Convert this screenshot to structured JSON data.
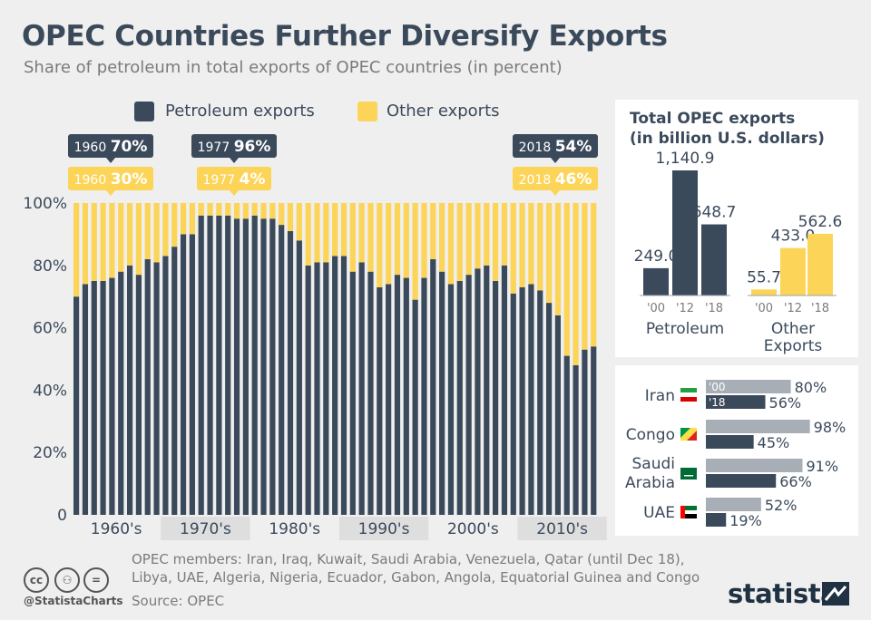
{
  "header": {
    "title": "OPEC Countries Further Diversify Exports",
    "subtitle": "Share of petroleum in total exports of OPEC countries (in percent)"
  },
  "legend": {
    "petroleum": "Petroleum exports",
    "other": "Other exports"
  },
  "colors": {
    "petroleum": "#3b4a5b",
    "other": "#fcd458",
    "grey_bar": "#a7aeb5",
    "band": "#dedede",
    "panel": "#ffffff"
  },
  "callouts": [
    {
      "year": "1960",
      "value": "70%",
      "series": "petroleum"
    },
    {
      "year": "1960",
      "value": "30%",
      "series": "other"
    },
    {
      "year": "1977",
      "value": "96%",
      "series": "petroleum"
    },
    {
      "year": "1977",
      "value": "4%",
      "series": "other"
    },
    {
      "year": "2018",
      "value": "54%",
      "series": "petroleum"
    },
    {
      "year": "2018",
      "value": "46%",
      "series": "other"
    }
  ],
  "chart_data": [
    {
      "type": "bar",
      "stacked": true,
      "ylim": [
        0,
        100
      ],
      "yticks": [
        "0",
        "20%",
        "40%",
        "60%",
        "80%",
        "100%"
      ],
      "decades": [
        "1960's",
        "1970's",
        "1980's",
        "1990's",
        "2000's",
        "2010's"
      ],
      "x": [
        1960,
        1961,
        1962,
        1963,
        1964,
        1965,
        1966,
        1967,
        1968,
        1969,
        1970,
        1971,
        1972,
        1973,
        1974,
        1975,
        1976,
        1977,
        1978,
        1979,
        1980,
        1981,
        1982,
        1983,
        1984,
        1985,
        1986,
        1987,
        1988,
        1989,
        1990,
        1991,
        1992,
        1993,
        1994,
        1995,
        1996,
        1997,
        1998,
        1999,
        2000,
        2001,
        2002,
        2003,
        2004,
        2005,
        2006,
        2007,
        2008,
        2009,
        2010,
        2011,
        2012,
        2013,
        2014,
        2015,
        2016,
        2017,
        2018
      ],
      "series": [
        {
          "name": "Petroleum exports",
          "values": [
            70,
            74,
            75,
            75,
            76,
            78,
            80,
            77,
            82,
            81,
            83,
            86,
            90,
            90,
            96,
            96,
            96,
            96,
            95,
            95,
            96,
            95,
            95,
            93,
            91,
            88,
            80,
            81,
            81,
            83,
            83,
            78,
            81,
            78,
            73,
            74,
            77,
            76,
            69,
            76,
            82,
            78,
            74,
            75,
            77,
            79,
            80,
            75,
            80,
            71,
            73,
            74,
            72,
            68,
            64,
            51,
            48,
            53,
            54
          ]
        },
        {
          "name": "Other exports",
          "values": [
            30,
            26,
            25,
            25,
            24,
            22,
            20,
            23,
            18,
            19,
            17,
            14,
            10,
            10,
            4,
            4,
            4,
            4,
            5,
            5,
            4,
            5,
            5,
            7,
            9,
            12,
            20,
            19,
            19,
            17,
            17,
            22,
            19,
            22,
            27,
            26,
            23,
            24,
            31,
            24,
            18,
            22,
            26,
            25,
            23,
            21,
            20,
            25,
            20,
            29,
            27,
            26,
            28,
            32,
            36,
            49,
            52,
            47,
            46
          ]
        }
      ]
    },
    {
      "type": "bar",
      "title": "Total OPEC exports\n(in billion U.S. dollars)",
      "groups": [
        {
          "name": "Petroleum",
          "categories": [
            "'00",
            "'12",
            "'18"
          ],
          "values": [
            249.0,
            1140.9,
            648.7
          ],
          "labels": [
            "249.0",
            "1,140.9",
            "648.7"
          ]
        },
        {
          "name": "Other\nExports",
          "categories": [
            "'00",
            "'12",
            "'18"
          ],
          "values": [
            55.7,
            433.0,
            562.6
          ],
          "labels": [
            "55.7",
            "433.0",
            "562.6"
          ]
        }
      ]
    },
    {
      "type": "bar",
      "orientation": "horizontal",
      "categories": [
        "Iran",
        "Congo",
        "Saudi\nArabia",
        "UAE"
      ],
      "series": [
        {
          "name": "'00",
          "values": [
            80,
            98,
            91,
            52
          ]
        },
        {
          "name": "'18",
          "values": [
            56,
            45,
            66,
            19
          ]
        }
      ],
      "labels": {
        "'00": [
          "80%",
          "98%",
          "91%",
          "52%"
        ],
        "'18": [
          "56%",
          "45%",
          "66%",
          "19%"
        ]
      }
    }
  ],
  "footer": {
    "members_line1": "OPEC members: Iran, Iraq, Kuwait, Saudi Arabia, Venezuela, Qatar (until Dec 18),",
    "members_line2": "Libya, UAE, Algeria, Nigeria, Ecuador, Gabon, Angola, Equatorial Guinea and Congo",
    "source": "Source: OPEC",
    "handle": "@StatistaCharts",
    "brand": "statista"
  },
  "icons": [
    "cc-icon",
    "by-icon",
    "nd-icon",
    "statista-logo-icon"
  ]
}
